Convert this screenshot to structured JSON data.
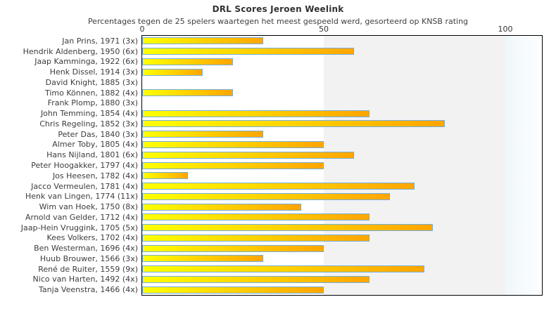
{
  "chart_data": {
    "type": "bar",
    "orientation": "horizontal",
    "title": "DRL Scores Jeroen Weelink",
    "subtitle": "Percentages tegen de 25 spelers waartegen het meest gespeeld werd, gesorteerd op KNSB rating",
    "categories": [
      "Jan Prins, 1971 (3x)",
      "Hendrik Aldenberg, 1950 (6x)",
      "Jaap Kamminga, 1922 (6x)",
      "Henk Dissel, 1914 (3x)",
      "David Knight, 1885 (3x)",
      "Timo Können, 1882 (4x)",
      "Frank Plomp, 1880 (3x)",
      "John Temming, 1854 (4x)",
      "Chris Regeling, 1852 (3x)",
      "Peter Das, 1840 (3x)",
      "Almer Toby, 1805 (4x)",
      "Hans Nijland, 1801 (6x)",
      "Peter Hoogakker, 1797 (4x)",
      "Jos Heesen, 1782 (4x)",
      "Jacco Vermeulen, 1781 (4x)",
      "Henk van Lingen, 1774 (11x)",
      "Wim van Hoek, 1750 (8x)",
      "Arnold van Gelder, 1712 (4x)",
      "Jaap-Hein Vruggink, 1705 (5x)",
      "Kees Volkers, 1702 (4x)",
      "Ben Westerman, 1696 (4x)",
      "Huub Brouwer, 1566 (3x)",
      "René de Ruiter, 1559 (9x)",
      "Nico van Harten, 1492 (4x)",
      "Tanja Veenstra, 1466 (4x)"
    ],
    "values": [
      33.3,
      58.3,
      25,
      16.7,
      0,
      25,
      0,
      62.5,
      83.3,
      33.3,
      50,
      58.3,
      50,
      12.5,
      75,
      68.2,
      43.8,
      62.5,
      80,
      62.5,
      50,
      33.3,
      77.8,
      62.5,
      50
    ],
    "xticks": [
      0,
      50,
      100
    ],
    "xlim": [
      0,
      110
    ],
    "xlabel": "",
    "ylabel": "",
    "grid": false,
    "legend": null,
    "colors": {
      "bar_gradient_start": "#ffff00",
      "bar_gradient_end": "#ffa500",
      "bar_border": "#74aede",
      "plot_border": "#000000",
      "band_50_100": "#f2f2f2",
      "band_over_100_start": "#eff7fb",
      "band_over_100_end": "#fdfeff",
      "title_text": "#333333",
      "label_text": "#3c3c3c"
    }
  }
}
